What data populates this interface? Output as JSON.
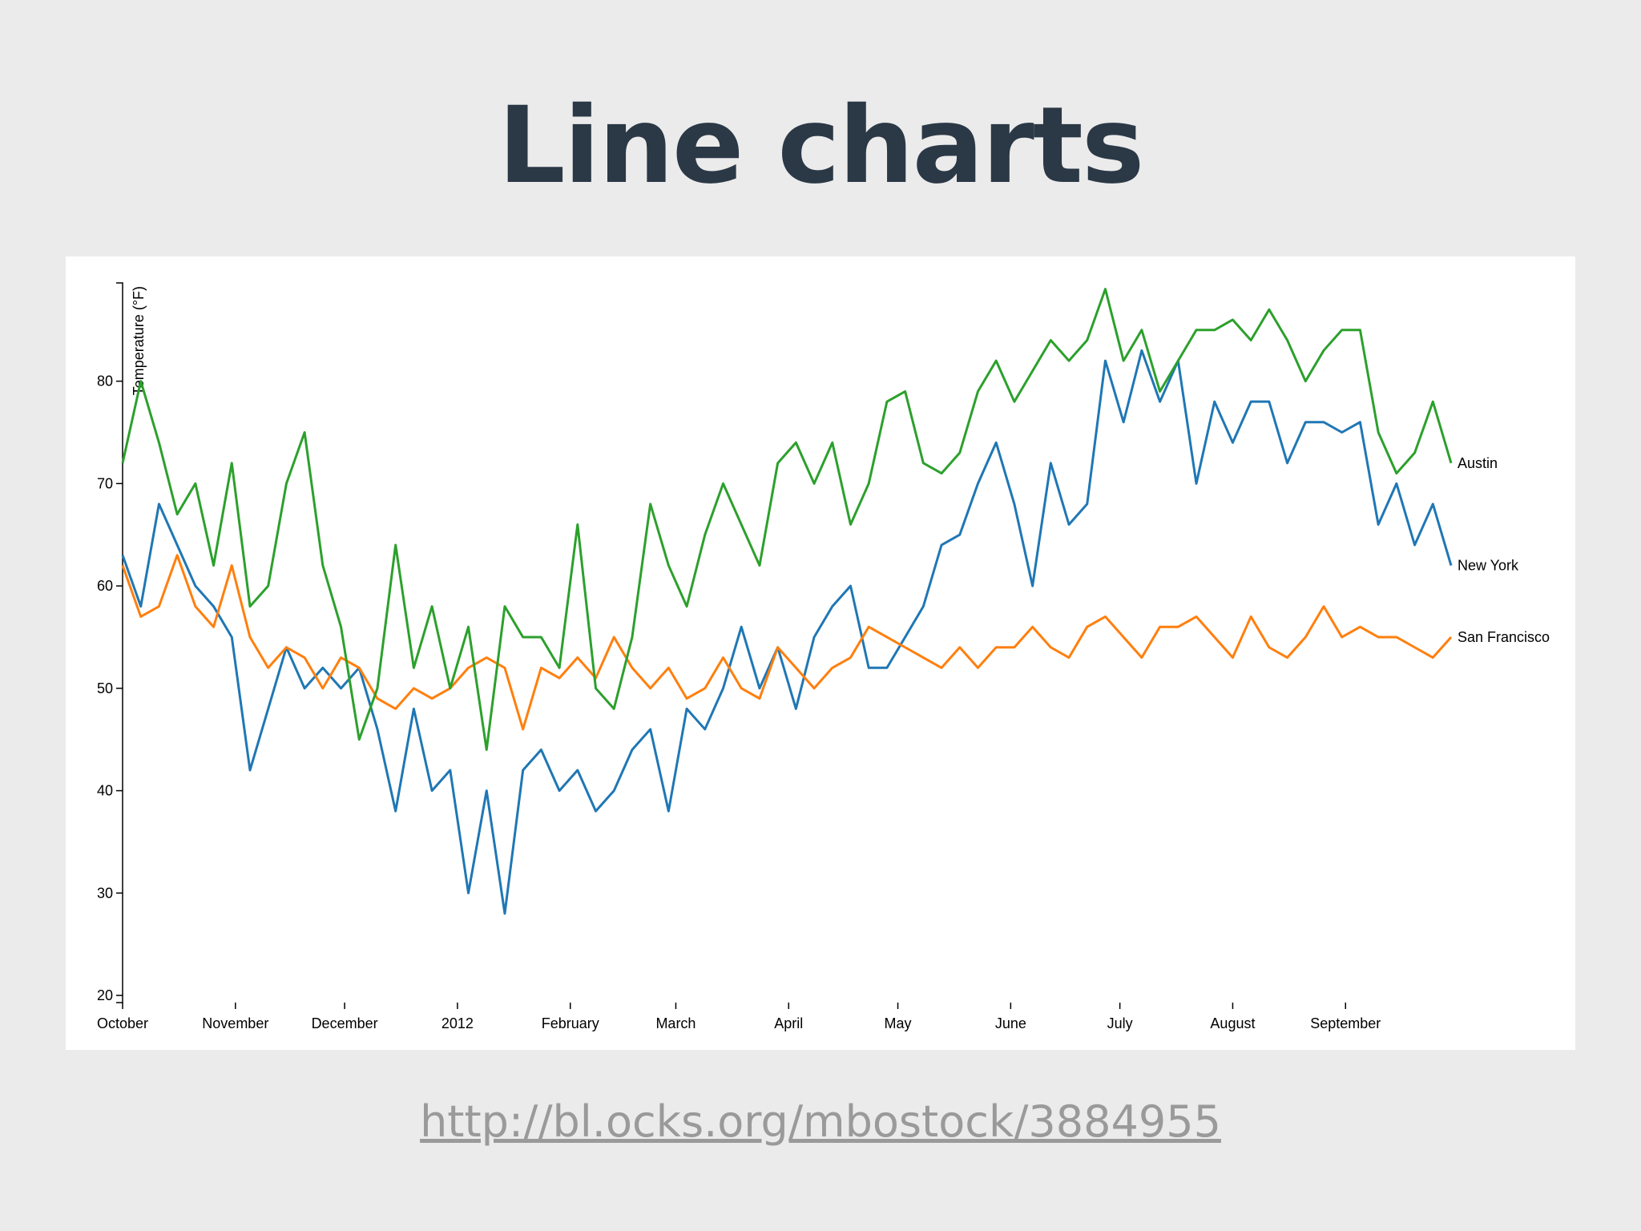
{
  "title": "Line charts",
  "link": "http://bl.ocks.org/mbostock/3884955",
  "chart_data": {
    "type": "line",
    "ylabel": "Temperature (°F)",
    "x": [
      0,
      5,
      10,
      15,
      20,
      25,
      30,
      35,
      40,
      45,
      50,
      55,
      60,
      65,
      70,
      75,
      80,
      85,
      90,
      95,
      100,
      105,
      110,
      115,
      120,
      125,
      130,
      135,
      140,
      145,
      150,
      155,
      160,
      165,
      170,
      175,
      180,
      185,
      190,
      195,
      200,
      205,
      210,
      215,
      220,
      225,
      230,
      235,
      240,
      245,
      250,
      255,
      260,
      265,
      270,
      275,
      280,
      285,
      290,
      295,
      300,
      305,
      310,
      315,
      320,
      325,
      330,
      335,
      340,
      345,
      350,
      355,
      360,
      365
    ],
    "xlim": [
      0,
      365
    ],
    "xticks": [
      {
        "value": 0,
        "label": "October"
      },
      {
        "value": 31,
        "label": "November"
      },
      {
        "value": 61,
        "label": "December"
      },
      {
        "value": 92,
        "label": "2012"
      },
      {
        "value": 123,
        "label": "February"
      },
      {
        "value": 152,
        "label": "March"
      },
      {
        "value": 183,
        "label": "April"
      },
      {
        "value": 213,
        "label": "May"
      },
      {
        "value": 244,
        "label": "June"
      },
      {
        "value": 274,
        "label": "July"
      },
      {
        "value": 305,
        "label": "August"
      },
      {
        "value": 336,
        "label": "September"
      }
    ],
    "ylim": [
      19.3,
      89.6
    ],
    "yticks": [
      20,
      30,
      40,
      50,
      60,
      70,
      80
    ],
    "series": [
      {
        "name": "New York",
        "color": "#1f77b4",
        "values": [
          63,
          58,
          68,
          64,
          60,
          58,
          55,
          42,
          48,
          54,
          50,
          52,
          50,
          52,
          46,
          38,
          48,
          40,
          42,
          30,
          40,
          28,
          42,
          44,
          40,
          42,
          38,
          40,
          44,
          46,
          38,
          48,
          46,
          50,
          56,
          50,
          54,
          48,
          55,
          58,
          60,
          52,
          52,
          55,
          58,
          64,
          65,
          70,
          74,
          68,
          60,
          72,
          66,
          68,
          82,
          76,
          83,
          78,
          82,
          70,
          78,
          74,
          78,
          78,
          72,
          76,
          76,
          75,
          76,
          66,
          70,
          64,
          68,
          62
        ]
      },
      {
        "name": "San Francisco",
        "color": "#ff7f0e",
        "values": [
          62,
          57,
          58,
          63,
          58,
          56,
          62,
          55,
          52,
          54,
          53,
          50,
          53,
          52,
          49,
          48,
          50,
          49,
          50,
          52,
          53,
          52,
          46,
          52,
          51,
          53,
          51,
          55,
          52,
          50,
          52,
          49,
          50,
          53,
          50,
          49,
          54,
          52,
          50,
          52,
          53,
          56,
          55,
          54,
          53,
          52,
          54,
          52,
          54,
          54,
          56,
          54,
          53,
          56,
          57,
          55,
          53,
          56,
          56,
          57,
          55,
          53,
          57,
          54,
          53,
          55,
          58,
          55,
          56,
          55,
          55,
          54,
          53,
          55
        ]
      },
      {
        "name": "Austin",
        "color": "#2ca02c",
        "values": [
          72,
          80,
          74,
          67,
          70,
          62,
          72,
          58,
          60,
          70,
          75,
          62,
          56,
          45,
          50,
          64,
          52,
          58,
          50,
          56,
          44,
          58,
          55,
          55,
          52,
          66,
          50,
          48,
          55,
          68,
          62,
          58,
          65,
          70,
          66,
          62,
          72,
          74,
          70,
          74,
          66,
          70,
          78,
          79,
          72,
          71,
          73,
          79,
          82,
          78,
          81,
          84,
          82,
          84,
          89,
          82,
          85,
          79,
          82,
          85,
          85,
          86,
          84,
          87,
          84,
          80,
          83,
          85,
          85,
          75,
          71,
          73,
          78,
          72
        ]
      }
    ]
  }
}
